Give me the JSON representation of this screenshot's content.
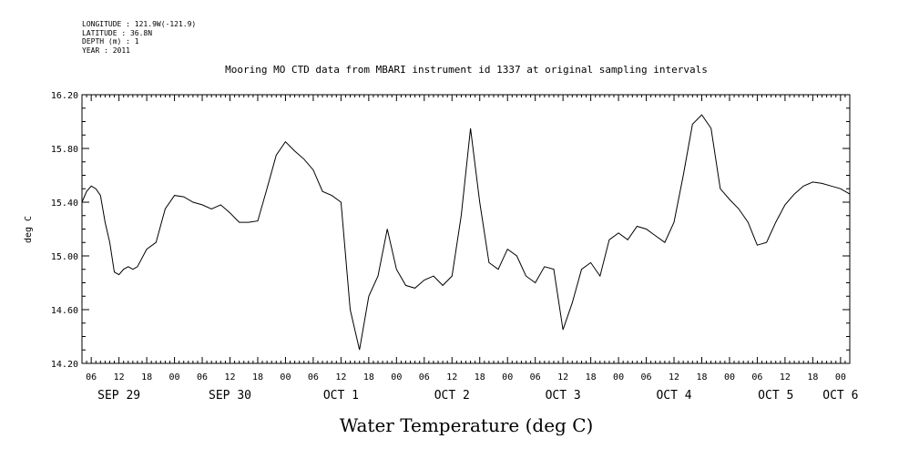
{
  "meta_lines": [
    "LONGITUDE : 121.9W(-121.9)",
    "LATITUDE : 36.8N",
    "DEPTH (m) : 1",
    "YEAR : 2011"
  ],
  "chart_data": {
    "type": "line",
    "title": "Mooring MO CTD data from MBARI instrument id 1337 at original sampling intervals",
    "ylabel": "deg C",
    "xlabel": "Water Temperature (deg C)",
    "ylim": [
      14.2,
      16.2
    ],
    "yticks": [
      "14.20",
      "14.60",
      "15.00",
      "15.40",
      "15.80",
      "16.20"
    ],
    "xlim_hours": [
      0,
      166
    ],
    "hour_tick_labels": [
      "06",
      "12",
      "18",
      "00",
      "06",
      "12",
      "18",
      "00",
      "06",
      "12",
      "18",
      "00",
      "06",
      "12",
      "18",
      "00",
      "06",
      "12",
      "18",
      "00",
      "06",
      "12",
      "18",
      "00",
      "06",
      "12",
      "18",
      "00"
    ],
    "date_labels": [
      "SEP 29",
      "SEP 30",
      "OCT  1",
      "OCT  2",
      "OCT  3",
      "OCT  4",
      "OCT  5",
      "OCT  6"
    ],
    "grid": false,
    "series": [
      {
        "x": [
          0,
          1,
          2,
          3,
          4,
          5,
          6,
          7,
          8,
          9,
          10,
          11,
          12,
          14,
          16,
          18,
          20,
          22,
          24,
          26,
          28,
          30,
          32,
          34,
          36,
          38,
          40,
          42,
          44,
          46,
          48,
          50,
          52,
          54,
          56,
          58,
          60,
          62,
          64,
          66,
          68,
          70,
          72,
          74,
          76,
          78,
          80,
          82,
          84,
          86,
          88,
          90,
          92,
          94,
          96,
          98,
          100,
          102,
          104,
          106,
          108,
          110,
          112,
          114,
          116,
          118,
          120,
          122,
          124,
          126,
          128,
          130,
          132,
          134,
          136,
          138,
          140,
          142,
          144,
          146,
          148,
          150,
          152,
          154,
          156,
          158,
          160,
          162,
          164,
          166
        ],
        "y": [
          15.4,
          15.48,
          15.52,
          15.5,
          15.45,
          15.25,
          15.1,
          14.88,
          14.86,
          14.9,
          14.92,
          14.9,
          14.92,
          15.05,
          15.1,
          15.35,
          15.45,
          15.44,
          15.4,
          15.38,
          15.35,
          15.38,
          15.32,
          15.25,
          15.25,
          15.26,
          15.5,
          15.75,
          15.85,
          15.78,
          15.72,
          15.64,
          15.48,
          15.45,
          15.4,
          14.6,
          14.3,
          14.7,
          14.85,
          15.2,
          14.9,
          14.78,
          14.76,
          14.82,
          14.85,
          14.78,
          14.85,
          15.3,
          15.95,
          15.4,
          14.95,
          14.9,
          15.05,
          15.0,
          14.85,
          14.8,
          14.92,
          14.9,
          14.45,
          14.65,
          14.9,
          14.95,
          14.85,
          15.12,
          15.17,
          15.12,
          15.22,
          15.2,
          15.15,
          15.1,
          15.25,
          15.6,
          15.98,
          16.05,
          15.95,
          15.5,
          15.42,
          15.35,
          15.25,
          15.08,
          15.1,
          15.25,
          15.38,
          15.46,
          15.52,
          15.55,
          15.54,
          15.52,
          15.5,
          15.46
        ]
      }
    ]
  }
}
